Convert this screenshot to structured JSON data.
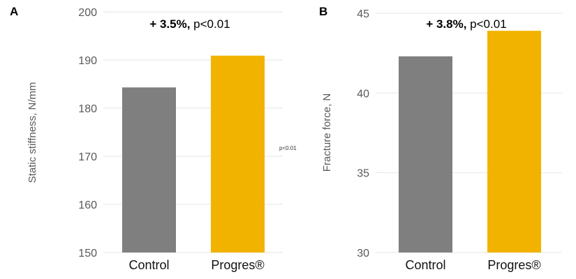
{
  "chart_data": [
    {
      "type": "bar",
      "panel_label": "A",
      "ylabel": "Static stiffness, N/mm",
      "ylim": [
        150,
        200
      ],
      "yticks": [
        150,
        160,
        170,
        180,
        190,
        200
      ],
      "grid": true,
      "categories": [
        "Control",
        "Progres®"
      ],
      "values": [
        184.3,
        190.9
      ],
      "colors": [
        "#7f7f7f",
        "#f2b300"
      ],
      "annotation": {
        "bold": "+ 3.5%,",
        "text": " p<0.01"
      }
    },
    {
      "type": "bar",
      "panel_label": "B",
      "ylabel": "Fracture force, N",
      "ylim": [
        30,
        45
      ],
      "yticks": [
        30,
        35,
        40,
        45
      ],
      "grid": true,
      "categories": [
        "Control",
        "Progres®"
      ],
      "values": [
        42.3,
        43.9
      ],
      "colors": [
        "#7f7f7f",
        "#f2b300"
      ],
      "annotation": {
        "bold": "+ 3.8%,",
        "text": " p<0.01"
      }
    }
  ],
  "stray_text": "p<0.01"
}
